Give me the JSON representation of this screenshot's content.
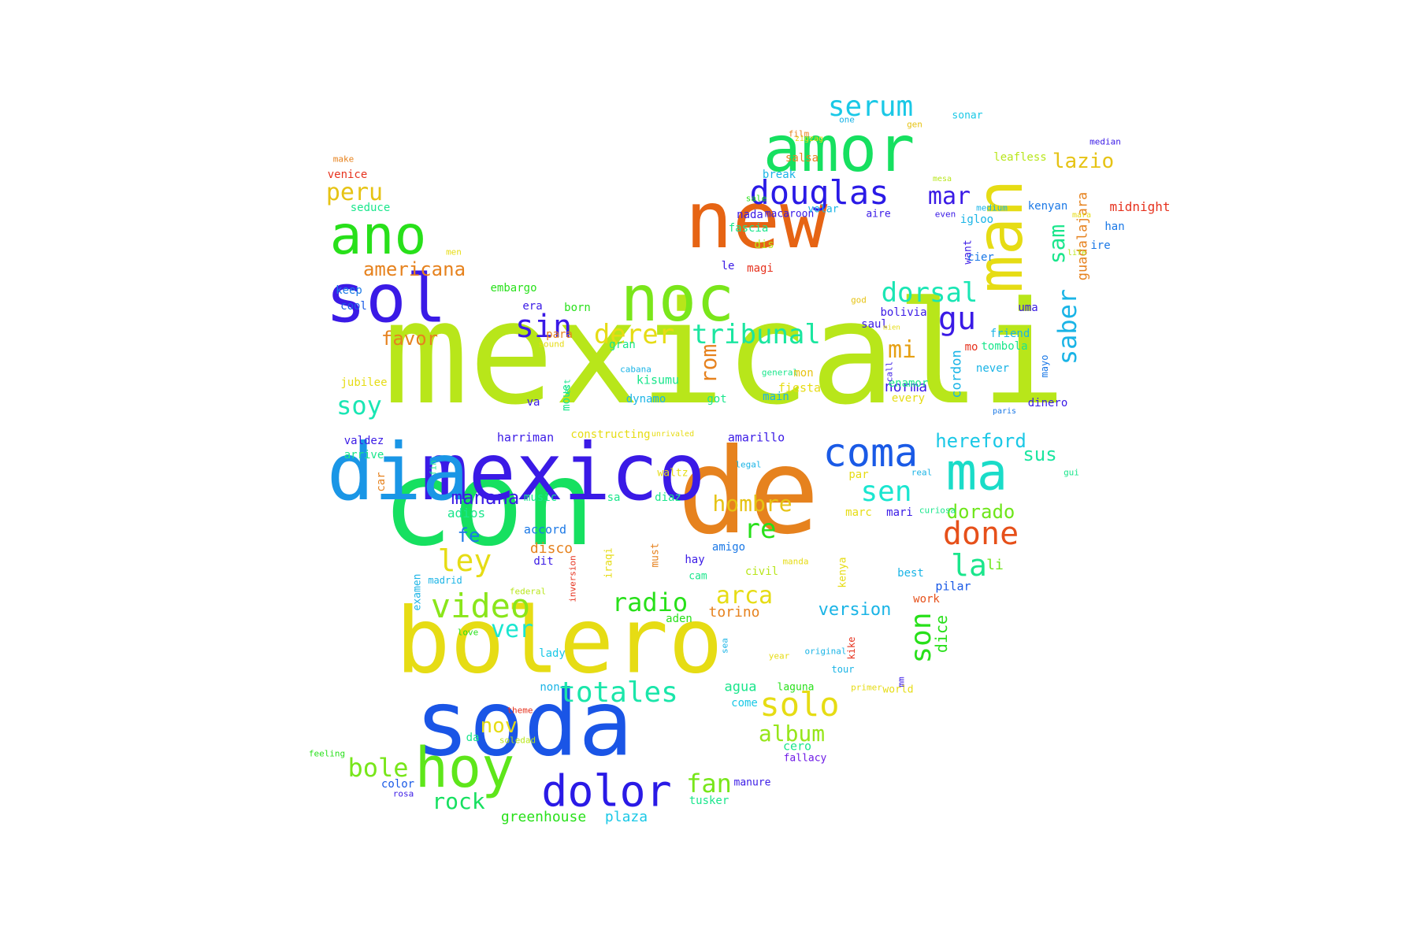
{
  "words": [
    {
      "t": "mexicali",
      "c": "#b8e61a"
    },
    {
      "t": "con",
      "c": "#16e060"
    },
    {
      "t": "de",
      "c": "#e6821e"
    },
    {
      "t": "soda",
      "c": "#1a55e6"
    },
    {
      "t": "bolero",
      "c": "#e6dc14"
    },
    {
      "t": "new",
      "c": "#e66414"
    },
    {
      "t": "mexico",
      "c": "#3a1ae6"
    },
    {
      "t": "dia",
      "c": "#1a96e6"
    },
    {
      "t": "amor",
      "c": "#16e060"
    },
    {
      "t": "noc",
      "c": "#7ae61a"
    },
    {
      "t": "sol",
      "c": "#3a1ae6"
    },
    {
      "t": "man",
      "c": "#e6dc14"
    },
    {
      "t": "ano",
      "c": "#28e01a"
    },
    {
      "t": "hoy",
      "c": "#5ee61a"
    },
    {
      "t": "ma",
      "c": "#1adcc8"
    },
    {
      "t": "coma",
      "c": "#1a5ae6"
    },
    {
      "t": "dolor",
      "c": "#2a1ae6"
    },
    {
      "t": "douglas",
      "c": "#2a1ae6"
    },
    {
      "t": "video",
      "c": "#8ae61a"
    },
    {
      "t": "done",
      "c": "#e6501a"
    },
    {
      "t": "totales",
      "c": "#1ae6aa"
    },
    {
      "t": "solo",
      "c": "#e6dc14"
    },
    {
      "t": "serum",
      "c": "#1ac8e6"
    },
    {
      "t": "dorsal",
      "c": "#1ae6b4"
    },
    {
      "t": "sin",
      "c": "#3a1ae6"
    },
    {
      "t": "derer",
      "c": "#e6dc14"
    },
    {
      "t": "tribunal",
      "c": "#1ae6a0"
    },
    {
      "t": "mar",
      "c": "#3a1ae6"
    },
    {
      "t": "gu",
      "c": "#3a1ae6"
    },
    {
      "t": "saber",
      "c": "#1ab4e6"
    },
    {
      "t": "peru",
      "c": "#e6c314"
    },
    {
      "t": "sen",
      "c": "#1ae6d0"
    },
    {
      "t": "radio",
      "c": "#28e01a"
    },
    {
      "t": "arca",
      "c": "#e6dc14"
    },
    {
      "t": "album",
      "c": "#96e61a"
    },
    {
      "t": "fan",
      "c": "#78e61a"
    },
    {
      "t": "ley",
      "c": "#e6dc14"
    },
    {
      "t": "bole",
      "c": "#78e61a"
    },
    {
      "t": "soy",
      "c": "#1ae6b4"
    },
    {
      "t": "hombre",
      "c": "#e6c314"
    },
    {
      "t": "re",
      "c": "#28e01a"
    },
    {
      "t": "la",
      "c": "#1ae68c"
    },
    {
      "t": "son",
      "c": "#28e01a"
    },
    {
      "t": "ver",
      "c": "#1ae6d0"
    },
    {
      "t": "lazio",
      "c": "#e6c314"
    },
    {
      "t": "sam",
      "c": "#1ae68c"
    },
    {
      "t": "mi",
      "c": "#e6a014"
    },
    {
      "t": "rom",
      "c": "#e6821e"
    },
    {
      "t": "hereford",
      "c": "#1ac8e6"
    },
    {
      "t": "manana",
      "c": "#3a1ae6"
    },
    {
      "t": "americana",
      "c": "#e6821e"
    },
    {
      "t": "favor",
      "c": "#e6821e"
    },
    {
      "t": "dorado",
      "c": "#6ee61a"
    },
    {
      "t": "nov",
      "c": "#e6dc14"
    },
    {
      "t": "rock",
      "c": "#16e060"
    },
    {
      "t": "version",
      "c": "#1ab4e6"
    },
    {
      "t": "sus",
      "c": "#1ae6a0"
    },
    {
      "t": "fe",
      "c": "#1a78e6"
    },
    {
      "t": "dice",
      "c": "#28e01a"
    },
    {
      "t": "torino",
      "c": "#e6821e"
    },
    {
      "t": "plaza",
      "c": "#1ac8e6"
    },
    {
      "t": "greenhouse",
      "c": "#28e01a"
    },
    {
      "t": "guadalajara",
      "c": "#e6821e"
    },
    {
      "t": "norma",
      "c": "#3a1ae6"
    },
    {
      "t": "cordon",
      "c": "#1ab4e6"
    },
    {
      "t": "li",
      "c": "#6ee61a"
    },
    {
      "t": "adios",
      "c": "#1ae68c"
    },
    {
      "t": "agua",
      "c": "#1ae68c"
    },
    {
      "t": "tusker",
      "c": "#1ae68c"
    },
    {
      "t": "cero",
      "c": "#1ae68c"
    },
    {
      "t": "pilar",
      "c": "#1a5ae6"
    },
    {
      "t": "disco",
      "c": "#e6821e"
    },
    {
      "t": "accord",
      "c": "#1a78e6"
    },
    {
      "t": "amarillo",
      "c": "#3a1ae6"
    },
    {
      "t": "harriman",
      "c": "#3a1ae6"
    },
    {
      "t": "constructing",
      "c": "#e6dc14"
    },
    {
      "t": "fiesta",
      "c": "#e6dc14"
    },
    {
      "t": "para",
      "c": "#e6821e"
    },
    {
      "t": "kisumu",
      "c": "#1ae68c"
    },
    {
      "t": "gran",
      "c": "#1ae68c"
    },
    {
      "t": "dynamo",
      "c": "#1ab4e6"
    },
    {
      "t": "bolivia",
      "c": "#3a1ae6"
    },
    {
      "t": "nada",
      "c": "#3a1ae6"
    },
    {
      "t": "salsa",
      "c": "#e6821e"
    },
    {
      "t": "break",
      "c": "#1ab4e6"
    },
    {
      "t": "leafless",
      "c": "#b8e61a"
    },
    {
      "t": "kenyan",
      "c": "#1a78e6"
    },
    {
      "t": "seduce",
      "c": "#1ae68c"
    },
    {
      "t": "venice",
      "c": "#e6321e"
    },
    {
      "t": "keep",
      "c": "#1a78e6"
    },
    {
      "t": "cool",
      "c": "#1a5ae6"
    },
    {
      "t": "embargo",
      "c": "#28e01a"
    },
    {
      "t": "era",
      "c": "#3a1ae6"
    },
    {
      "t": "born",
      "c": "#28e01a"
    },
    {
      "t": "jubilee",
      "c": "#e6dc14"
    },
    {
      "t": "valdez",
      "c": "#3a1ae6"
    },
    {
      "t": "arrive",
      "c": "#1ae68c"
    },
    {
      "t": "car",
      "c": "#e6821e"
    },
    {
      "t": "examen",
      "c": "#1ab4e6"
    },
    {
      "t": "madrid",
      "c": "#1ab4e6"
    },
    {
      "t": "inversion",
      "c": "#e6321e"
    },
    {
      "t": "federal",
      "c": "#b8e61a"
    },
    {
      "t": "iraqi",
      "c": "#e6dc14"
    },
    {
      "t": "must",
      "c": "#e6821e"
    },
    {
      "t": "dit",
      "c": "#3a1ae6"
    },
    {
      "t": "hay",
      "c": "#3a1ae6"
    },
    {
      "t": "cam",
      "c": "#1ae68c"
    },
    {
      "t": "amigo",
      "c": "#1a78e6"
    },
    {
      "t": "civil",
      "c": "#b8e61a"
    },
    {
      "t": "manda",
      "c": "#e6dc14"
    },
    {
      "t": "kenya",
      "c": "#e6dc14"
    },
    {
      "t": "best",
      "c": "#1ab4e6"
    },
    {
      "t": "work",
      "c": "#e6501a"
    },
    {
      "t": "aden",
      "c": "#28e01a"
    },
    {
      "t": "love",
      "c": "#28e01a"
    },
    {
      "t": "lady",
      "c": "#1ac8e6"
    },
    {
      "t": "sea",
      "c": "#1ab4e6"
    },
    {
      "t": "year",
      "c": "#e6dc14"
    },
    {
      "t": "original",
      "c": "#1ab4e6"
    },
    {
      "t": "kike",
      "c": "#e6321e"
    },
    {
      "t": "tour",
      "c": "#1ab4e6"
    },
    {
      "t": "laguna",
      "c": "#28e01a"
    },
    {
      "t": "primer",
      "c": "#e6dc14"
    },
    {
      "t": "world",
      "c": "#e6dc14"
    },
    {
      "t": "mm",
      "c": "#3a1ae6"
    },
    {
      "t": "come",
      "c": "#1ac8e6"
    },
    {
      "t": "non",
      "c": "#1ab4e6"
    },
    {
      "t": "theme",
      "c": "#e6321e"
    },
    {
      "t": "da",
      "c": "#1ae68c"
    },
    {
      "t": "soledad",
      "c": "#b8e61a"
    },
    {
      "t": "feeling",
      "c": "#28e01a"
    },
    {
      "t": "color",
      "c": "#1a5ae6"
    },
    {
      "t": "rosa",
      "c": "#3a1ae6"
    },
    {
      "t": "manure",
      "c": "#3a1ae6"
    },
    {
      "t": "fallacy",
      "c": "#6e1ae6"
    },
    {
      "t": "make",
      "c": "#e6821e"
    },
    {
      "t": "men",
      "c": "#e6dc14"
    },
    {
      "t": "film",
      "c": "#e6821e"
    },
    {
      "t": "zigzag",
      "c": "#e6dc14"
    },
    {
      "t": "one",
      "c": "#1ab4e6"
    },
    {
      "t": "gen",
      "c": "#e6c314"
    },
    {
      "t": "sonar",
      "c": "#1ac8e6"
    },
    {
      "t": "median",
      "c": "#3a1ae6"
    },
    {
      "t": "mesa",
      "c": "#b8e61a"
    },
    {
      "t": "sale",
      "c": "#28e01a"
    },
    {
      "t": "macaroon",
      "c": "#3a1ae6"
    },
    {
      "t": "volar",
      "c": "#1ab4e6"
    },
    {
      "t": "aire",
      "c": "#3a1ae6"
    },
    {
      "t": "even",
      "c": "#3a1ae6"
    },
    {
      "t": "medium",
      "c": "#1ab4e6"
    },
    {
      "t": "mara",
      "c": "#e6dc14"
    },
    {
      "t": "midnight",
      "c": "#e6321e"
    },
    {
      "t": "fascia",
      "c": "#1ae68c"
    },
    {
      "t": "dis",
      "c": "#b8e61a"
    },
    {
      "t": "igloo",
      "c": "#1ab4e6"
    },
    {
      "t": "han",
      "c": "#1a78e6"
    },
    {
      "t": "ire",
      "c": "#1a78e6"
    },
    {
      "t": "want",
      "c": "#3a1ae6"
    },
    {
      "t": "cier",
      "c": "#1a78e6"
    },
    {
      "t": "life",
      "c": "#b8e61a"
    },
    {
      "t": "le",
      "c": "#3a1ae6"
    },
    {
      "t": "magi",
      "c": "#e6321e"
    },
    {
      "t": "god",
      "c": "#e6c314"
    },
    {
      "t": "uma",
      "c": "#3a1ae6"
    },
    {
      "t": "friend",
      "c": "#1ab4e6"
    },
    {
      "t": "saul",
      "c": "#3a1ae6"
    },
    {
      "t": "mien",
      "c": "#e6dc14"
    },
    {
      "t": "mo",
      "c": "#e6321e"
    },
    {
      "t": "tombola",
      "c": "#1ae68c"
    },
    {
      "t": "mayo",
      "c": "#1a78e6"
    },
    {
      "t": "never",
      "c": "#1ab4e6"
    },
    {
      "t": "dinero",
      "c": "#3a1ae6"
    },
    {
      "t": "paris",
      "c": "#1a78e6"
    },
    {
      "t": "gui",
      "c": "#1ae68c"
    },
    {
      "t": "sound",
      "c": "#e6dc14"
    },
    {
      "t": "cabana",
      "c": "#1ab4e6"
    },
    {
      "t": "general",
      "c": "#1ae68c"
    },
    {
      "t": "mon",
      "c": "#e6c314"
    },
    {
      "t": "main",
      "c": "#1ab4e6"
    },
    {
      "t": "enamor",
      "c": "#1ae68c"
    },
    {
      "t": "every",
      "c": "#e6dc14"
    },
    {
      "t": "call",
      "c": "#3a1ae6"
    },
    {
      "t": "got",
      "c": "#1ae68c"
    },
    {
      "t": "va",
      "c": "#3a1ae6"
    },
    {
      "t": "moue",
      "c": "#1ae68c"
    },
    {
      "t": "est",
      "c": "#1ae68c"
    },
    {
      "t": "unrivaled",
      "c": "#e6dc14"
    },
    {
      "t": "legal",
      "c": "#1ab4e6"
    },
    {
      "t": "par",
      "c": "#e6dc14"
    },
    {
      "t": "real",
      "c": "#1ab4e6"
    },
    {
      "t": "curiosa",
      "c": "#1ae68c"
    },
    {
      "t": "marc",
      "c": "#e6dc14"
    },
    {
      "t": "mari",
      "c": "#3a1ae6"
    },
    {
      "t": "waltz",
      "c": "#e6dc14"
    },
    {
      "t": "music",
      "c": "#1ae68c"
    },
    {
      "t": "sa",
      "c": "#1ae68c"
    },
    {
      "t": "diaz",
      "c": "#1ae68c"
    },
    {
      "t": "fin",
      "c": "#1ae68c"
    },
    {
      "t": "caribe",
      "c": "#1ab4e6"
    },
    {
      "t": "ana",
      "c": "#1ab4e6"
    }
  ]
}
